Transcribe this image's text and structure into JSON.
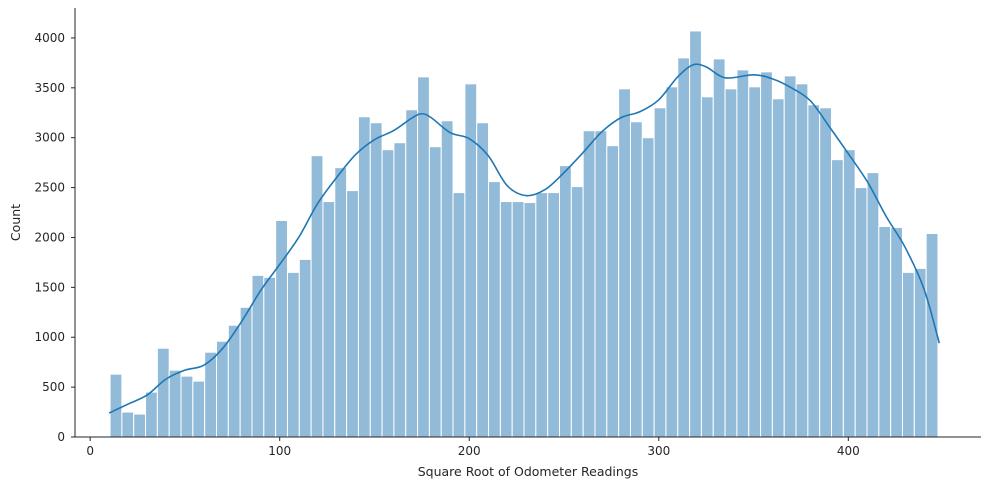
{
  "chart_data": {
    "type": "bar",
    "title": "",
    "xlabel": "Square Root of Odometer Readings",
    "ylabel": "Count",
    "xlim": [
      -8,
      470
    ],
    "ylim": [
      0,
      4300
    ],
    "xticks": [
      0,
      100,
      200,
      300,
      400
    ],
    "yticks": [
      0,
      500,
      1000,
      1500,
      2000,
      2500,
      3000,
      3500,
      4000
    ],
    "grid": false,
    "legend": "none",
    "bar_color": "#92bbd9",
    "kde_color": "#1f77b4",
    "bin_start": 10.5,
    "bin_width": 6.24,
    "counts": [
      630,
      250,
      230,
      450,
      890,
      670,
      610,
      560,
      850,
      960,
      1120,
      1300,
      1620,
      1600,
      2170,
      1650,
      1780,
      2820,
      2360,
      2700,
      2470,
      3210,
      3150,
      2880,
      2950,
      3280,
      3610,
      2910,
      3170,
      2450,
      3540,
      3150,
      2560,
      2360,
      2360,
      2350,
      2450,
      2450,
      2720,
      2510,
      3070,
      3070,
      2920,
      3490,
      3160,
      3000,
      3300,
      3510,
      3800,
      4070,
      3410,
      3790,
      3490,
      3680,
      3510,
      3660,
      3390,
      3620,
      3540,
      3330,
      3300,
      2780,
      2880,
      2500,
      2650,
      2110,
      2100,
      1650,
      1690,
      2040
    ],
    "kde": {
      "x": [
        10,
        20,
        30,
        40,
        50,
        60,
        70,
        80,
        90,
        100,
        110,
        120,
        130,
        140,
        150,
        160,
        170,
        175,
        180,
        190,
        200,
        210,
        220,
        230,
        240,
        250,
        260,
        270,
        280,
        290,
        300,
        310,
        318,
        325,
        335,
        350,
        360,
        370,
        380,
        390,
        400,
        410,
        420,
        430,
        440,
        448
      ],
      "y": [
        240,
        330,
        420,
        580,
        670,
        720,
        890,
        1160,
        1470,
        1730,
        2000,
        2340,
        2600,
        2830,
        2980,
        3070,
        3200,
        3240,
        3200,
        3050,
        2990,
        2820,
        2520,
        2420,
        2480,
        2650,
        2850,
        3060,
        3200,
        3260,
        3380,
        3610,
        3730,
        3710,
        3600,
        3630,
        3590,
        3500,
        3370,
        3110,
        2840,
        2560,
        2210,
        1900,
        1480,
        940
      ]
    }
  }
}
